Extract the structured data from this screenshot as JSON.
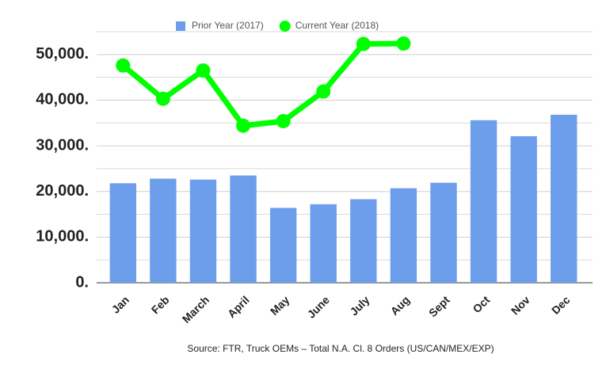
{
  "chart_data": {
    "type": "bar",
    "categories": [
      "Jan",
      "Feb",
      "March",
      "April",
      "May",
      "June",
      "July",
      "Aug",
      "Sept",
      "Oct",
      "Nov",
      "Dec"
    ],
    "series": [
      {
        "name": "Prior Year (2017)",
        "type": "bar",
        "color": "#6d9eeb",
        "values": [
          21800,
          22800,
          22600,
          23500,
          16400,
          17200,
          18300,
          20700,
          21900,
          35600,
          32100,
          36800
        ]
      },
      {
        "name": "Current Year (2018)",
        "type": "line",
        "color": "#00ff00",
        "values": [
          47600,
          40300,
          46500,
          34400,
          35400,
          41900,
          52300,
          52400,
          null,
          null,
          null,
          null
        ]
      }
    ],
    "ylim": [
      0,
      55000
    ],
    "yticks": [
      {
        "value": 0,
        "label": "0."
      },
      {
        "value": 10000,
        "label": "10,000."
      },
      {
        "value": 20000,
        "label": "20,000."
      },
      {
        "value": 30000,
        "label": "30,000."
      },
      {
        "value": 40000,
        "label": "40,000."
      },
      {
        "value": 50000,
        "label": "50,000."
      }
    ],
    "yticks_minor": [
      5000,
      15000,
      25000,
      35000,
      45000,
      55000
    ],
    "grid": true,
    "legend": "top",
    "source": "Source: FTR, Truck OEMs – Total N.A. Cl. 8 Orders (US/CAN/MEX/EXP)"
  }
}
